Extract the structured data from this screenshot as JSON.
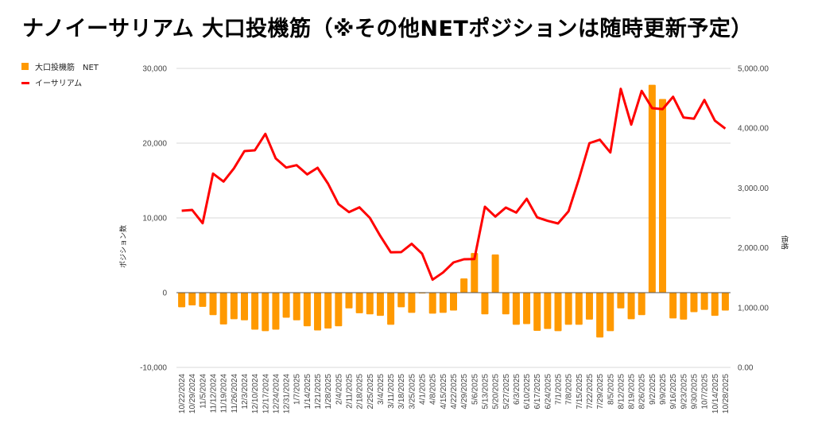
{
  "chart_data": {
    "type": "bar+line",
    "title": "ナノイーサリアム 大口投機筋（※その他NETポジションは随時更新予定）",
    "xlabel": "",
    "ylabel_left": "ポジション数",
    "ylabel_right": "価格",
    "legend_position": "top-left",
    "grid": true,
    "ylim_left": [
      -10000,
      30000
    ],
    "ylim_right": [
      0,
      5000
    ],
    "left_ticks": [
      "-10,000",
      "0",
      "10,000",
      "20,000",
      "30,000"
    ],
    "left_tick_values": [
      -10000,
      0,
      10000,
      20000,
      30000
    ],
    "right_ticks": [
      "0.00",
      "1,000.00",
      "2,000.00",
      "3,000.00",
      "4,000.00",
      "5,000.00"
    ],
    "right_tick_values": [
      0,
      1000,
      2000,
      3000,
      4000,
      5000
    ],
    "categories": [
      "10/22/2024",
      "10/29/2024",
      "11/5/2024",
      "11/12/2024",
      "11/19/2024",
      "11/26/2024",
      "12/3/2024",
      "12/10/2024",
      "12/17/2024",
      "12/24/2024",
      "12/31/2024",
      "1/7/2025",
      "1/14/2025",
      "1/21/2025",
      "1/28/2025",
      "2/4/2025",
      "2/11/2025",
      "2/18/2025",
      "2/25/2025",
      "3/4/2025",
      "3/11/2025",
      "3/18/2025",
      "3/25/2025",
      "4/1/2025",
      "4/8/2025",
      "4/15/2025",
      "4/22/2025",
      "4/29/2025",
      "5/6/2025",
      "5/13/2025",
      "5/20/2025",
      "5/27/2025",
      "6/3/2025",
      "6/10/2025",
      "6/17/2025",
      "6/24/2025",
      "7/1/2025",
      "7/8/2025",
      "7/15/2025",
      "7/22/2025",
      "7/29/2025",
      "8/5/2025",
      "8/12/2025",
      "8/19/2025",
      "8/26/2025",
      "9/2/2025",
      "9/9/2025",
      "9/16/2025",
      "9/23/2025",
      "9/30/2025",
      "10/7/2025",
      "10/14/2025",
      "10/28/2025"
    ],
    "series": [
      {
        "name": "大口投機筋　NET",
        "type": "bar",
        "axis": "left",
        "color": "#ff9900",
        "values": [
          -1950,
          -1700,
          -1900,
          -3000,
          -4250,
          -3550,
          -3700,
          -4950,
          -5150,
          -4950,
          -3350,
          -3700,
          -4500,
          -5050,
          -4800,
          -4500,
          -2100,
          -2750,
          -2900,
          -3100,
          -4300,
          -1950,
          -2700,
          -100,
          -2800,
          -2700,
          -2400,
          1900,
          5300,
          -2900,
          5100,
          -2900,
          -4300,
          -4200,
          -5100,
          -4850,
          -5150,
          -4300,
          -4300,
          -3600,
          -6000,
          -5150,
          -2100,
          -3550,
          -3000,
          27800,
          25900,
          -3450,
          -3600,
          -2600,
          -2300,
          -3100,
          -2400
        ]
      },
      {
        "name": "イーサリアム",
        "type": "line",
        "axis": "right",
        "color": "#ff0000",
        "values": [
          2620,
          2633,
          2411,
          3241,
          3108,
          3329,
          3617,
          3630,
          3905,
          3493,
          3342,
          3381,
          3227,
          3338,
          3072,
          2730,
          2597,
          2677,
          2500,
          2198,
          1924,
          1928,
          2066,
          1902,
          1467,
          1587,
          1755,
          1809,
          1813,
          2686,
          2522,
          2673,
          2589,
          2819,
          2509,
          2451,
          2407,
          2611,
          3152,
          3750,
          3807,
          3594,
          4658,
          4060,
          4624,
          4335,
          4318,
          4525,
          4180,
          4158,
          4472,
          4126,
          3993
        ]
      }
    ]
  },
  "colors": {
    "bar": "#ff9900",
    "line": "#ff0000",
    "grid": "#d9d9d9",
    "zero": "#555555"
  }
}
